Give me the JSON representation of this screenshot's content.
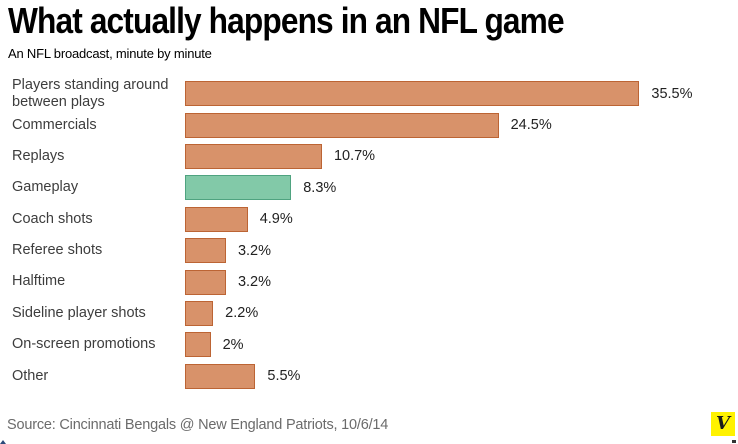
{
  "chart_data": {
    "type": "bar",
    "orientation": "horizontal",
    "title": "What actually happens in an NFL game",
    "subtitle": "An NFL broadcast, minute by minute",
    "categories": [
      "Players standing around between plays",
      "Commercials",
      "Replays",
      "Gameplay",
      "Coach shots",
      "Referee shots",
      "Halftime",
      "Sideline player shots",
      "On-screen promotions",
      "Other"
    ],
    "values": [
      35.5,
      24.5,
      10.7,
      8.3,
      4.9,
      3.2,
      3.2,
      2.2,
      2,
      5.5
    ],
    "value_labels": [
      "35.5%",
      "24.5%",
      "10.7%",
      "8.3%",
      "4.9%",
      "3.2%",
      "3.2%",
      "2.2%",
      "2%",
      "5.5%"
    ],
    "unit": "%",
    "highlight_index": 3,
    "xlim": [
      0,
      36
    ],
    "grid": false,
    "legend": false,
    "axis_ticks_shown": false,
    "colors": {
      "bar_fill": "#d8926a",
      "bar_border": "#bc6434",
      "highlight_fill": "#82c9a8",
      "highlight_border": "#4fa380",
      "label_text": "#3d3d3d",
      "value_text": "#222222"
    }
  },
  "footer": {
    "source": "Source: Cincinnati Bengals @ New England Patriots, 10/6/14",
    "logo_text": "V",
    "logo_bg": "#fff200"
  }
}
